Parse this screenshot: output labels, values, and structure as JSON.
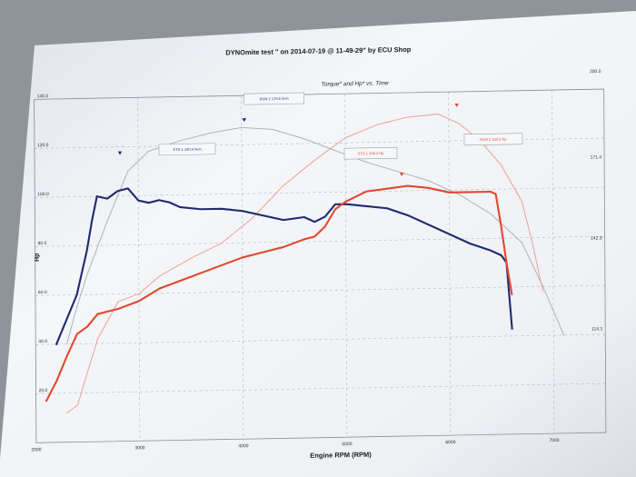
{
  "header": {
    "title": "DYNOmite test \" on 2014-07-19 @ 11-49-29\" by ECU Shop",
    "chart_title": "Torque* and Hp* vs. Time"
  },
  "colors": {
    "paper": "#f3f5f9",
    "grid": "#b4b8bf",
    "std_hp": "#e0482e",
    "std_torque": "#1e2a6e",
    "run2_torque": "#b0b3bb",
    "run2_hp": "#e9a493"
  },
  "chart_data": {
    "type": "line",
    "title": "Torque* and Hp* vs. Time",
    "xlabel": "Engine RPM (RPM)",
    "ylabel": "Hp",
    "xlim": [
      2000,
      7500
    ],
    "ylim": [
      0,
      140
    ],
    "x_ticks": [
      "2000",
      "3000",
      "4000",
      "5000",
      "6000",
      "7000"
    ],
    "y_ticks": [
      "20.0",
      "40.0",
      "60.0",
      "80.0",
      "100.0",
      "120.0",
      "140.0"
    ],
    "y2_ticks": [
      "114.3",
      "142.9",
      "171.4",
      "200.0"
    ],
    "grid": true,
    "series": [
      {
        "key": "std_torque",
        "x": [
          2200,
          2300,
          2400,
          2500,
          2550,
          2600,
          2700,
          2800,
          2900,
          3000,
          3100,
          3200,
          3300,
          3400,
          3600,
          3800,
          4000,
          4200,
          4400,
          4600,
          4700,
          4800,
          4900,
          5000,
          5200,
          5400,
          5600,
          5800,
          6000,
          6200,
          6400,
          6500,
          6550,
          6600
        ],
        "y": [
          40,
          50,
          60,
          78,
          90,
          100,
          99,
          102,
          103,
          98,
          97,
          98,
          97,
          95,
          94,
          94,
          93,
          91,
          89,
          90,
          88,
          90,
          95,
          95,
          94,
          93,
          90,
          86,
          82,
          78,
          75,
          73,
          70,
          43
        ]
      },
      {
        "key": "std_hp",
        "x": [
          2100,
          2200,
          2300,
          2400,
          2500,
          2600,
          2800,
          3000,
          3200,
          3400,
          3600,
          3800,
          4000,
          4200,
          4400,
          4600,
          4700,
          4800,
          4900,
          5000,
          5200,
          5400,
          5600,
          5800,
          6000,
          6200,
          6400,
          6450,
          6500,
          6550,
          6600
        ],
        "y": [
          17,
          25,
          35,
          44,
          47,
          52,
          54,
          57,
          62,
          65,
          68,
          71,
          74,
          76,
          78,
          81,
          82,
          86,
          93,
          96,
          100,
          101,
          102,
          101,
          99,
          99,
          99,
          98,
          85,
          70,
          57
        ]
      },
      {
        "key": "run2_torque",
        "x": [
          2300,
          2400,
          2500,
          2700,
          2900,
          3100,
          3400,
          3700,
          4000,
          4300,
          4600,
          4900,
          5200,
          5500,
          5800,
          6100,
          6400,
          6700,
          6900,
          7100
        ],
        "y": [
          40,
          55,
          68,
          90,
          110,
          118,
          122,
          125,
          127,
          126,
          122,
          117,
          112,
          108,
          104,
          98,
          90,
          78,
          60,
          40
        ]
      },
      {
        "key": "run2_hp",
        "x": [
          2300,
          2400,
          2600,
          2800,
          3000,
          3200,
          3500,
          3800,
          4100,
          4400,
          4700,
          5000,
          5300,
          5600,
          5900,
          6100,
          6300,
          6500,
          6700,
          6800,
          6900
        ],
        "y": [
          12,
          15,
          42,
          57,
          60,
          67,
          74,
          80,
          90,
          103,
          113,
          122,
          127,
          130,
          131,
          127,
          120,
          110,
          95,
          78,
          58
        ]
      }
    ],
    "annotations": [
      {
        "key": "run2_torque",
        "label": "RUN 2 179.6 N-m"
      },
      {
        "key": "std_torque",
        "label": "STD 1 140.9 N-m"
      },
      {
        "key": "std_hp",
        "label": "STD 1 106.2 Hp"
      },
      {
        "key": "run2_hp",
        "label": "RUN 2 133.5 Hp"
      }
    ]
  }
}
